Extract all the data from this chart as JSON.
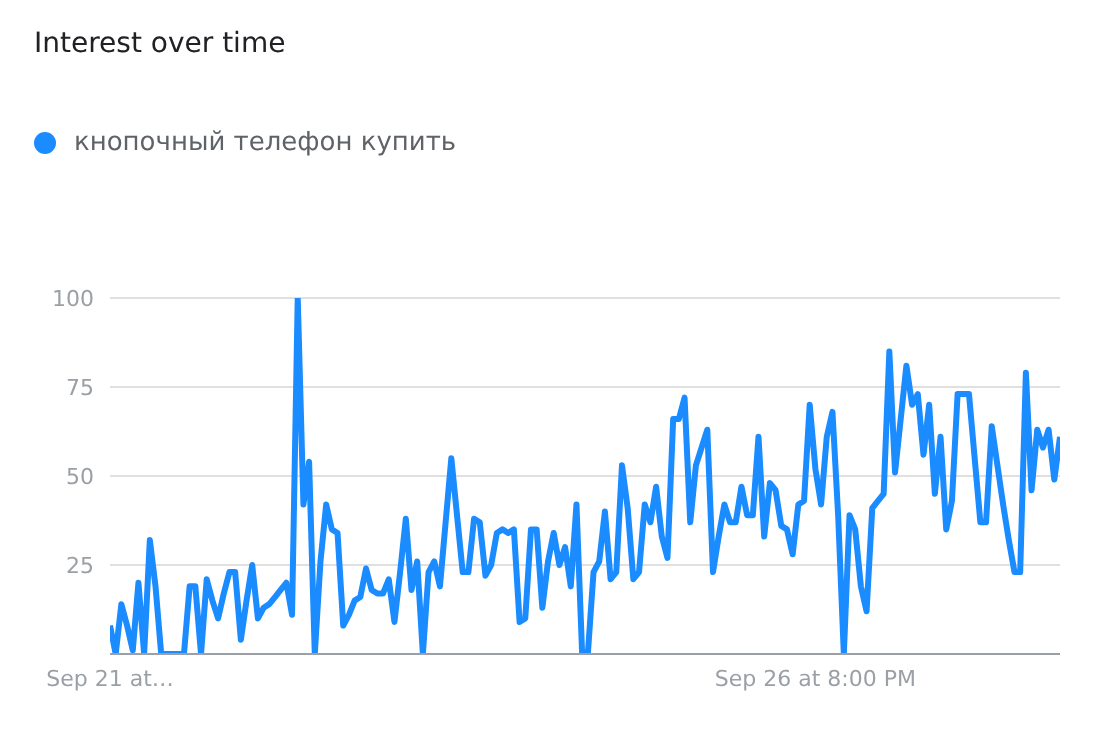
{
  "chart_data": {
    "type": "line",
    "title": "Interest over time",
    "categories": [
      "Sep 21 at…",
      null,
      null,
      null,
      null,
      null,
      null,
      null,
      null,
      null,
      null,
      null,
      null,
      null,
      null,
      null,
      null,
      null,
      null,
      null,
      null,
      null,
      null,
      null,
      null,
      null,
      null,
      null,
      null,
      null,
      null,
      null,
      null,
      null,
      null,
      null,
      null,
      null,
      null,
      null,
      null,
      null,
      null,
      null,
      null,
      null,
      null,
      null,
      null,
      null,
      null,
      null,
      null,
      null,
      null,
      null,
      null,
      null,
      null,
      null,
      null,
      null,
      null,
      null,
      null,
      null,
      null,
      null,
      null,
      null,
      null,
      null,
      null,
      null,
      null,
      null,
      null,
      null,
      null,
      null,
      null,
      null,
      null,
      null,
      null,
      null,
      null,
      null,
      null,
      null,
      null,
      null,
      null,
      null,
      null,
      null,
      null,
      null,
      null,
      null,
      null,
      null,
      null,
      null,
      null,
      null,
      null,
      null,
      null,
      null,
      null,
      null,
      null,
      null,
      null,
      null,
      null,
      null,
      null,
      null,
      null,
      null,
      null,
      null,
      "Sep 26 at 8:00 PM",
      null,
      null,
      null,
      null,
      null,
      null,
      null,
      null,
      null,
      null,
      null,
      null,
      null,
      null,
      null,
      null,
      null,
      null,
      null,
      null,
      null,
      null,
      null,
      null,
      null,
      null,
      null,
      null,
      null,
      null,
      null,
      null,
      null,
      null,
      null,
      null,
      null,
      null,
      null,
      null,
      null,
      null,
      null
    ],
    "series": [
      {
        "name": "кнопочный телефон купить",
        "color": "#1a8cff",
        "values": [
          8,
          0,
          14,
          8,
          1,
          20,
          0,
          32,
          19,
          0,
          0,
          0,
          0,
          0,
          19,
          19,
          0,
          21,
          15,
          10,
          17,
          23,
          23,
          4,
          15,
          25,
          10,
          13,
          14,
          16,
          18,
          20,
          11,
          100,
          42,
          54,
          0,
          26,
          42,
          35,
          34,
          8,
          11,
          15,
          16,
          24,
          18,
          17,
          17,
          21,
          9,
          23,
          38,
          18,
          26,
          0,
          23,
          26,
          19,
          37,
          55,
          39,
          23,
          23,
          38,
          37,
          22,
          25,
          34,
          35,
          34,
          35,
          9,
          10,
          35,
          35,
          13,
          26,
          34,
          25,
          30,
          19,
          42,
          0,
          0,
          23,
          26,
          40,
          21,
          23,
          53,
          41,
          21,
          23,
          42,
          37,
          47,
          33,
          27,
          66,
          66,
          72,
          37,
          53,
          58,
          63,
          23,
          33,
          42,
          37,
          37,
          47,
          39,
          39,
          61,
          33,
          48,
          46,
          36,
          35,
          28,
          42,
          43,
          70,
          52,
          42,
          61,
          68,
          39,
          0,
          39,
          35,
          19,
          12,
          41,
          43,
          45,
          85,
          51,
          66,
          81,
          70,
          73,
          56,
          70,
          45,
          61,
          35,
          43,
          73,
          73,
          73,
          55,
          37,
          37,
          64,
          53,
          42,
          32,
          23,
          23,
          79,
          46,
          63,
          58,
          63,
          49,
          61
        ]
      }
    ],
    "ylim": [
      0,
      100
    ],
    "yticks": [
      {
        "value": 0,
        "label": null
      },
      25,
      50,
      75,
      100
    ],
    "grid": "y",
    "legend": "top left",
    "marker": "none",
    "line_style": "solid"
  }
}
